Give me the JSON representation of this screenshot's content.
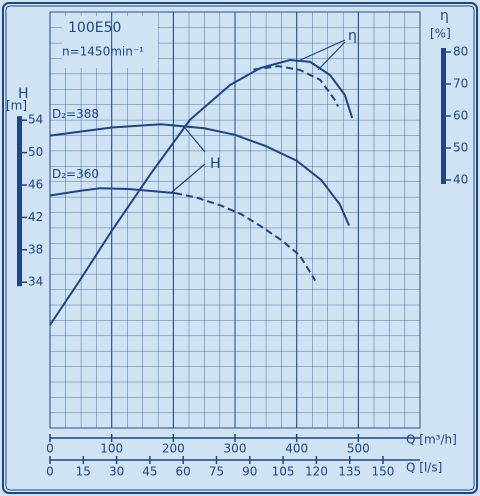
{
  "chart_data": {
    "type": "line",
    "title": "100E50",
    "subtitle": "n=1450min⁻¹",
    "x_label": "Q [m³/h]",
    "x2_label": "Q [l/s]",
    "y_label": "H",
    "y_unit": "[m]",
    "y2_label": "η",
    "y2_unit": "[%]",
    "xlim": [
      0,
      600
    ],
    "xticks": [
      0,
      100,
      200,
      300,
      400,
      500
    ],
    "x2lim": [
      0,
      166.67
    ],
    "x2ticks": [
      0,
      15,
      30,
      45,
      60,
      75,
      90,
      105,
      120,
      135,
      150
    ],
    "ylim": [
      16,
      67.36
    ],
    "yticks": [
      34,
      38,
      42,
      46,
      50,
      54
    ],
    "y2lim": [
      -37.5,
      92.5
    ],
    "y2ticks": [
      40,
      50,
      60,
      70,
      80
    ],
    "grid": true,
    "color": "#1f4585",
    "series": [
      {
        "name": "D₂=388",
        "color": "#1f4585",
        "dash": false,
        "x": [
          0,
          100,
          180,
          250,
          300,
          350,
          400,
          440,
          470,
          485
        ],
        "values": [
          52.1,
          53.1,
          53.5,
          53.0,
          52.2,
          50.8,
          49.0,
          46.6,
          43.6,
          41.0
        ]
      },
      {
        "name": "D₂=360",
        "color": "#1f4585",
        "dash": false,
        "x": [
          0,
          50,
          81,
          130,
          203
        ],
        "values": [
          44.7,
          45.3,
          45.6,
          45.5,
          45.0
        ]
      },
      {
        "color": "#1f4585",
        "dash": true,
        "x": [
          203,
          240,
          276,
          310,
          340,
          375,
          405,
          430
        ],
        "values": [
          45.0,
          44.4,
          43.5,
          42.4,
          41.0,
          39.2,
          37.3,
          34.2
        ]
      },
      {
        "color": "#1f4585",
        "dash": false,
        "axis": "y2",
        "x": [
          0,
          49,
          99,
          162,
          227,
          292,
          341,
          389,
          422,
          454,
          478,
          490
        ],
        "values": [
          -5.3,
          8.8,
          23.8,
          41.6,
          58.8,
          69.7,
          75.0,
          77.5,
          76.9,
          72.8,
          66.6,
          59.4
        ]
      },
      {
        "color": "#1f4585",
        "dash": true,
        "axis": "y2",
        "x": [
          330,
          370,
          405,
          438,
          462,
          467
        ],
        "values": [
          74.5,
          75.6,
          74.4,
          71.3,
          65.0,
          63.0
        ]
      }
    ],
    "annotations": [
      {
        "text": "H"
      },
      {
        "text": "η"
      }
    ]
  }
}
